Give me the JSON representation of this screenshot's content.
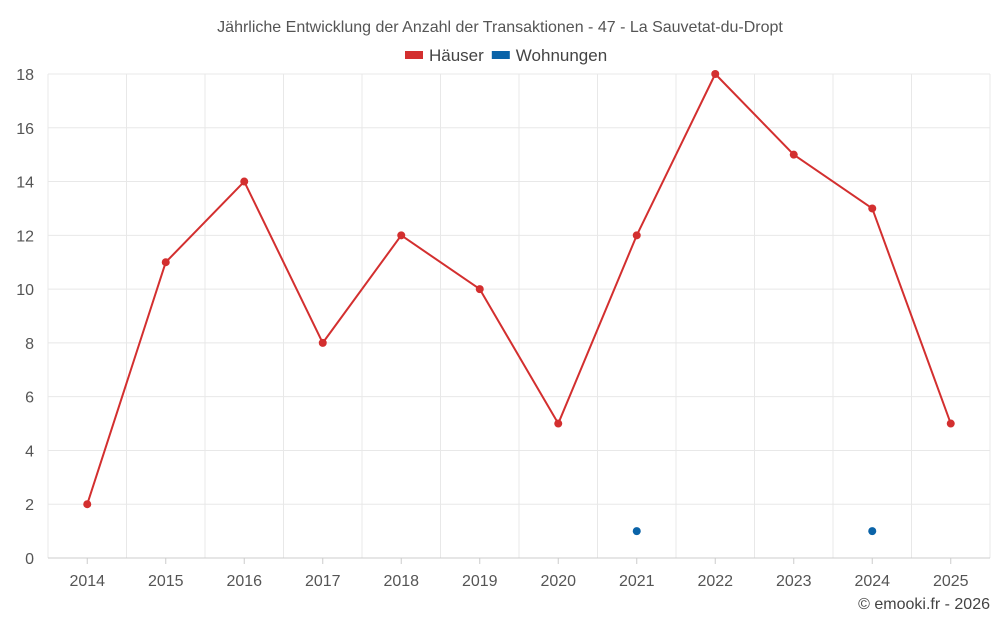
{
  "chart_data": {
    "type": "line",
    "title": "Jährliche Entwicklung der Anzahl der Transaktionen - 47 - La Sauvetat-du-Dropt",
    "xlabel": "",
    "ylabel": "",
    "categories": [
      "2014",
      "2015",
      "2016",
      "2017",
      "2018",
      "2019",
      "2020",
      "2021",
      "2022",
      "2023",
      "2024",
      "2025"
    ],
    "ylim": [
      0,
      18
    ],
    "yticks": [
      0,
      2,
      4,
      6,
      8,
      10,
      12,
      14,
      16,
      18
    ],
    "grid": true,
    "legend_position": "top-center",
    "series": [
      {
        "name": "Häuser",
        "color": "#d32f2f",
        "line": true,
        "values": [
          2,
          11,
          14,
          8,
          12,
          10,
          5,
          12,
          18,
          15,
          13,
          5
        ]
      },
      {
        "name": "Wohnungen",
        "color": "#0a63a8",
        "line": false,
        "values": [
          null,
          null,
          null,
          null,
          null,
          null,
          null,
          1,
          null,
          null,
          1,
          null
        ]
      }
    ]
  },
  "credit": "© emooki.fr - 2026"
}
